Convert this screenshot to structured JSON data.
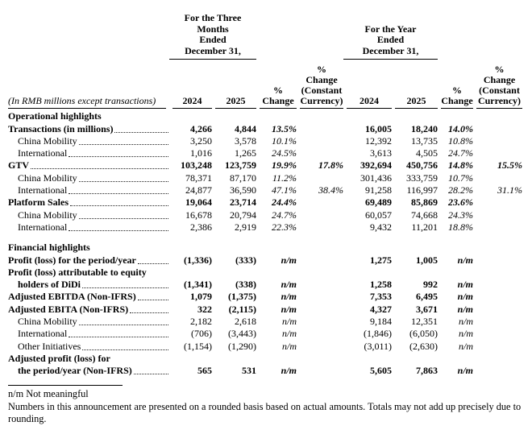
{
  "header": {
    "three_months": "For the Three\nMonths\nEnded\nDecember 31,",
    "year": "For the Year\nEnded\nDecember 31,",
    "row_label_note": "(In RMB millions except transactions)",
    "col_labels": [
      "2024",
      "2025",
      "%\nChange",
      "%\nChange\n(Constant\nCurrency)",
      "2024",
      "2025",
      "%\nChange",
      "%\nChange\n(Constant\nCurrency)"
    ]
  },
  "table": {
    "columns": [
      "q-2024",
      "q-2025",
      "q-pct-change",
      "q-pct-change-constant-currency",
      "fy-2024",
      "fy-2025",
      "fy-pct-change",
      "fy-pct-change-constant-currency"
    ],
    "rows": [
      {
        "type": "section",
        "label": "Operational highlights",
        "bold": true
      },
      {
        "type": "data",
        "label": "Transactions (in millions)",
        "bold": true,
        "leader": true,
        "cells": [
          "4,266",
          "4,844",
          "13.5%",
          "",
          "16,005",
          "18,240",
          "14.0%",
          ""
        ]
      },
      {
        "type": "data",
        "label": "China Mobility",
        "indent": true,
        "leader": true,
        "cells": [
          "3,250",
          "3,578",
          "10.1%",
          "",
          "12,392",
          "13,735",
          "10.8%",
          ""
        ]
      },
      {
        "type": "data",
        "label": "International",
        "indent": true,
        "leader": true,
        "cells": [
          "1,016",
          "1,265",
          "24.5%",
          "",
          "3,613",
          "4,505",
          "24.7%",
          ""
        ]
      },
      {
        "type": "data",
        "label": "GTV",
        "bold": true,
        "leader": true,
        "cells": [
          "103,248",
          "123,759",
          "19.9%",
          "17.8%",
          "392,694",
          "450,756",
          "14.8%",
          "15.5%"
        ]
      },
      {
        "type": "data",
        "label": "China Mobility",
        "indent": true,
        "leader": true,
        "cells": [
          "78,371",
          "87,170",
          "11.2%",
          "",
          "301,436",
          "333,759",
          "10.7%",
          ""
        ]
      },
      {
        "type": "data",
        "label": "International",
        "indent": true,
        "leader": true,
        "cells": [
          "24,877",
          "36,590",
          "47.1%",
          "38.4%",
          "91,258",
          "116,997",
          "28.2%",
          "31.1%"
        ]
      },
      {
        "type": "data",
        "label": "Platform Sales",
        "bold": true,
        "leader": true,
        "cells": [
          "19,064",
          "23,714",
          "24.4%",
          "",
          "69,489",
          "85,869",
          "23.6%",
          ""
        ]
      },
      {
        "type": "data",
        "label": "China Mobility",
        "indent": true,
        "leader": true,
        "cells": [
          "16,678",
          "20,794",
          "24.7%",
          "",
          "60,057",
          "74,668",
          "24.3%",
          ""
        ]
      },
      {
        "type": "data",
        "label": "International",
        "indent": true,
        "leader": true,
        "cells": [
          "2,386",
          "2,919",
          "22.3%",
          "",
          "9,432",
          "11,201",
          "18.8%",
          ""
        ]
      },
      {
        "type": "blank"
      },
      {
        "type": "section",
        "label": "Financial highlights",
        "bold": true
      },
      {
        "type": "data",
        "label": "Profit (loss) for the period/year",
        "bold": true,
        "leader": true,
        "cells": [
          "(1,336)",
          "(333)",
          "n/m",
          "",
          "1,275",
          "1,005",
          "n/m",
          ""
        ]
      },
      {
        "type": "labelonly",
        "label": "Profit (loss) attributable to equity",
        "bold": true
      },
      {
        "type": "data",
        "label": "holders of DiDi",
        "bold": true,
        "indent": true,
        "leader": true,
        "cells": [
          "(1,341)",
          "(338)",
          "n/m",
          "",
          "1,258",
          "992",
          "n/m",
          ""
        ]
      },
      {
        "type": "data",
        "label": "Adjusted EBITDA (Non-IFRS)",
        "bold": true,
        "leader": true,
        "cells": [
          "1,079",
          "(1,375)",
          "n/m",
          "",
          "7,353",
          "6,495",
          "n/m",
          ""
        ]
      },
      {
        "type": "data",
        "label": "Adjusted EBITA (Non-IFRS)",
        "bold": true,
        "leader": true,
        "cells": [
          "322",
          "(2,115)",
          "n/m",
          "",
          "4,327",
          "3,671",
          "n/m",
          ""
        ]
      },
      {
        "type": "data",
        "label": "China Mobility",
        "indent": true,
        "leader": true,
        "cells": [
          "2,182",
          "2,618",
          "n/m",
          "",
          "9,184",
          "12,351",
          "n/m",
          ""
        ]
      },
      {
        "type": "data",
        "label": "International",
        "indent": true,
        "leader": true,
        "cells": [
          "(706)",
          "(3,443)",
          "n/m",
          "",
          "(1,846)",
          "(6,050)",
          "n/m",
          ""
        ]
      },
      {
        "type": "data",
        "label": "Other Initiatives",
        "indent": true,
        "leader": true,
        "cells": [
          "(1,154)",
          "(1,290)",
          "n/m",
          "",
          "(3,011)",
          "(2,630)",
          "n/m",
          ""
        ]
      },
      {
        "type": "labelonly",
        "label": "Adjusted profit (loss) for",
        "bold": true
      },
      {
        "type": "data",
        "label": "the period/year (Non-IFRS)",
        "bold": true,
        "indent": true,
        "leader": true,
        "cells": [
          "565",
          "531",
          "n/m",
          "",
          "5,605",
          "7,863",
          "n/m",
          ""
        ]
      }
    ]
  },
  "footnotes": {
    "nm": "n/m Not meaningful",
    "rounding": "Numbers in this announcement are presented on a rounded basis based on actual amounts. Totals may not add up precisely due to rounding."
  }
}
